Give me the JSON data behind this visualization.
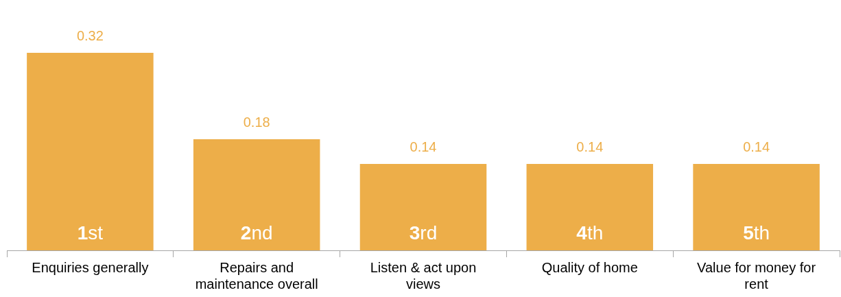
{
  "chart_data": {
    "type": "bar",
    "categories": [
      "Enquiries generally",
      "Repairs and maintenance overall",
      "Listen & act upon views",
      "Quality of home",
      "Value for money for rent"
    ],
    "values": [
      0.32,
      0.18,
      0.14,
      0.14,
      0.14
    ],
    "color": "#edae49",
    "data_labels": true,
    "annotations": [
      {
        "text": "1st",
        "x": "Enquiries generally",
        "y": 0
      },
      {
        "text": "2nd",
        "x": "Repairs and maintenance overall",
        "y": 0
      },
      {
        "text": "3rd",
        "x": "Listen & act upon views",
        "y": 0
      },
      {
        "text": "4th",
        "x": "Quality of home",
        "y": 0
      },
      {
        "text": "5th",
        "x": "Value for money for rent",
        "y": 0
      }
    ],
    "grid": false,
    "legend": false
  }
}
